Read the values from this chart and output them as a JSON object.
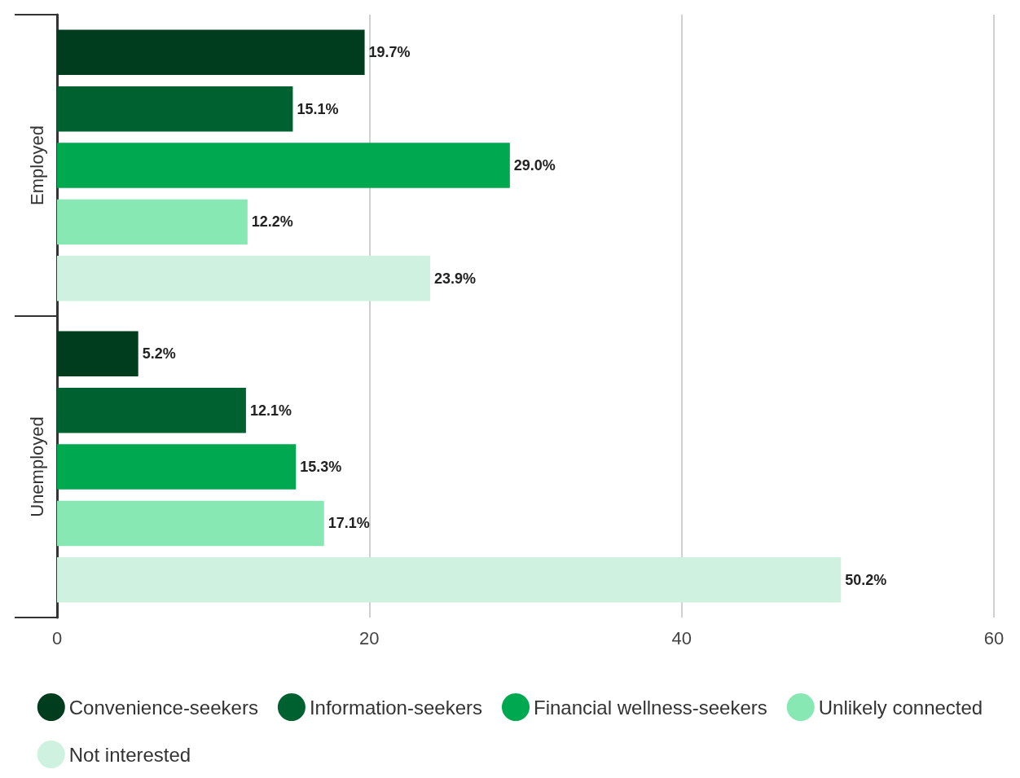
{
  "chart_data": {
    "type": "bar",
    "orientation": "horizontal",
    "categories": [
      "Employed",
      "Unemployed"
    ],
    "series": [
      {
        "name": "Convenience-seekers",
        "color": "#003d1f",
        "values": [
          19.7,
          5.2
        ],
        "value_labels": [
          "19.7%",
          "5.2%"
        ]
      },
      {
        "name": "Information-seekers",
        "color": "#006130",
        "values": [
          15.1,
          12.1
        ],
        "value_labels": [
          "15.1%",
          "12.1%"
        ]
      },
      {
        "name": "Financial wellness-seekers",
        "color": "#00a84f",
        "values": [
          29.0,
          15.3
        ],
        "value_labels": [
          "29.0%",
          "15.3%"
        ]
      },
      {
        "name": "Unlikely connected",
        "color": "#88e8b3",
        "values": [
          12.2,
          17.1
        ],
        "value_labels": [
          "12.2%",
          "17.1%"
        ]
      },
      {
        "name": "Not interested",
        "color": "#cff2e0",
        "values": [
          23.9,
          50.2
        ],
        "value_labels": [
          "23.9%",
          "50.2%"
        ]
      }
    ],
    "xlim": [
      0,
      60
    ],
    "xticks": [
      0,
      20,
      40,
      60
    ],
    "grid": "x",
    "legend": "bottom"
  }
}
